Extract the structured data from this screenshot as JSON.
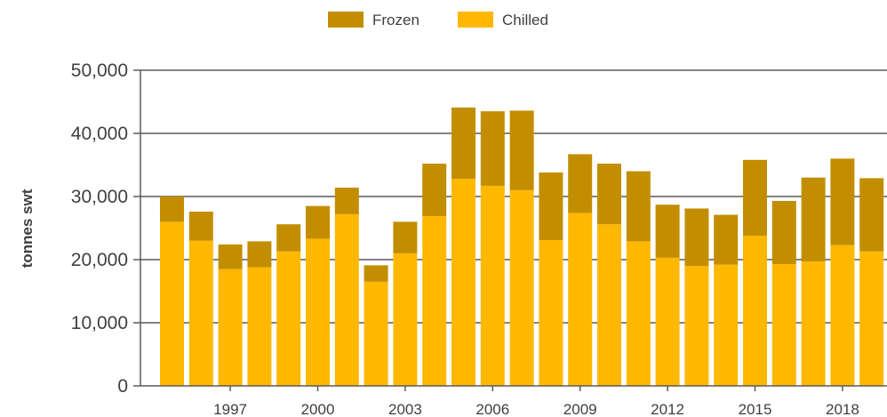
{
  "chart_data": {
    "type": "bar",
    "stacked": true,
    "title": "",
    "xlabel": "",
    "ylabel": "tonnes swt",
    "ylim": [
      0,
      50000
    ],
    "yticks": [
      0,
      10000,
      20000,
      30000,
      40000,
      50000
    ],
    "ytick_labels": [
      "0",
      "10,000",
      "20,000",
      "30,000",
      "40,000",
      "50,000"
    ],
    "categories": [
      "1995",
      "1996",
      "1997",
      "1998",
      "1999",
      "2000",
      "2001",
      "2002",
      "2003",
      "2004",
      "2005",
      "2006",
      "2007",
      "2008",
      "2009",
      "2010",
      "2011",
      "2012",
      "2013",
      "2014",
      "2015",
      "2016",
      "2017",
      "2018",
      "2019"
    ],
    "xtick_labels": [
      "1997",
      "2000",
      "2003",
      "2006",
      "2009",
      "2012",
      "2015",
      "2018"
    ],
    "grid": "horizontal",
    "legend_position": "top-center",
    "series": [
      {
        "name": "Chilled",
        "color": "#FFB800",
        "values": [
          26000,
          23000,
          18500,
          18800,
          21300,
          23300,
          27200,
          16500,
          21000,
          26900,
          32800,
          31700,
          31000,
          23100,
          27400,
          25600,
          22900,
          20300,
          19000,
          19200,
          23800,
          19300,
          19700,
          22300,
          21300
        ]
      },
      {
        "name": "Frozen",
        "color": "#C28E00",
        "values": [
          4000,
          4600,
          3900,
          4100,
          4300,
          5200,
          4200,
          2600,
          5000,
          8300,
          11300,
          11800,
          12600,
          10700,
          9300,
          9600,
          11100,
          8400,
          9100,
          7900,
          12000,
          10000,
          13300,
          13700,
          11600
        ]
      }
    ],
    "legend": [
      {
        "name": "Frozen",
        "color": "#C28E00"
      },
      {
        "name": "Chilled",
        "color": "#FFB800"
      }
    ]
  }
}
